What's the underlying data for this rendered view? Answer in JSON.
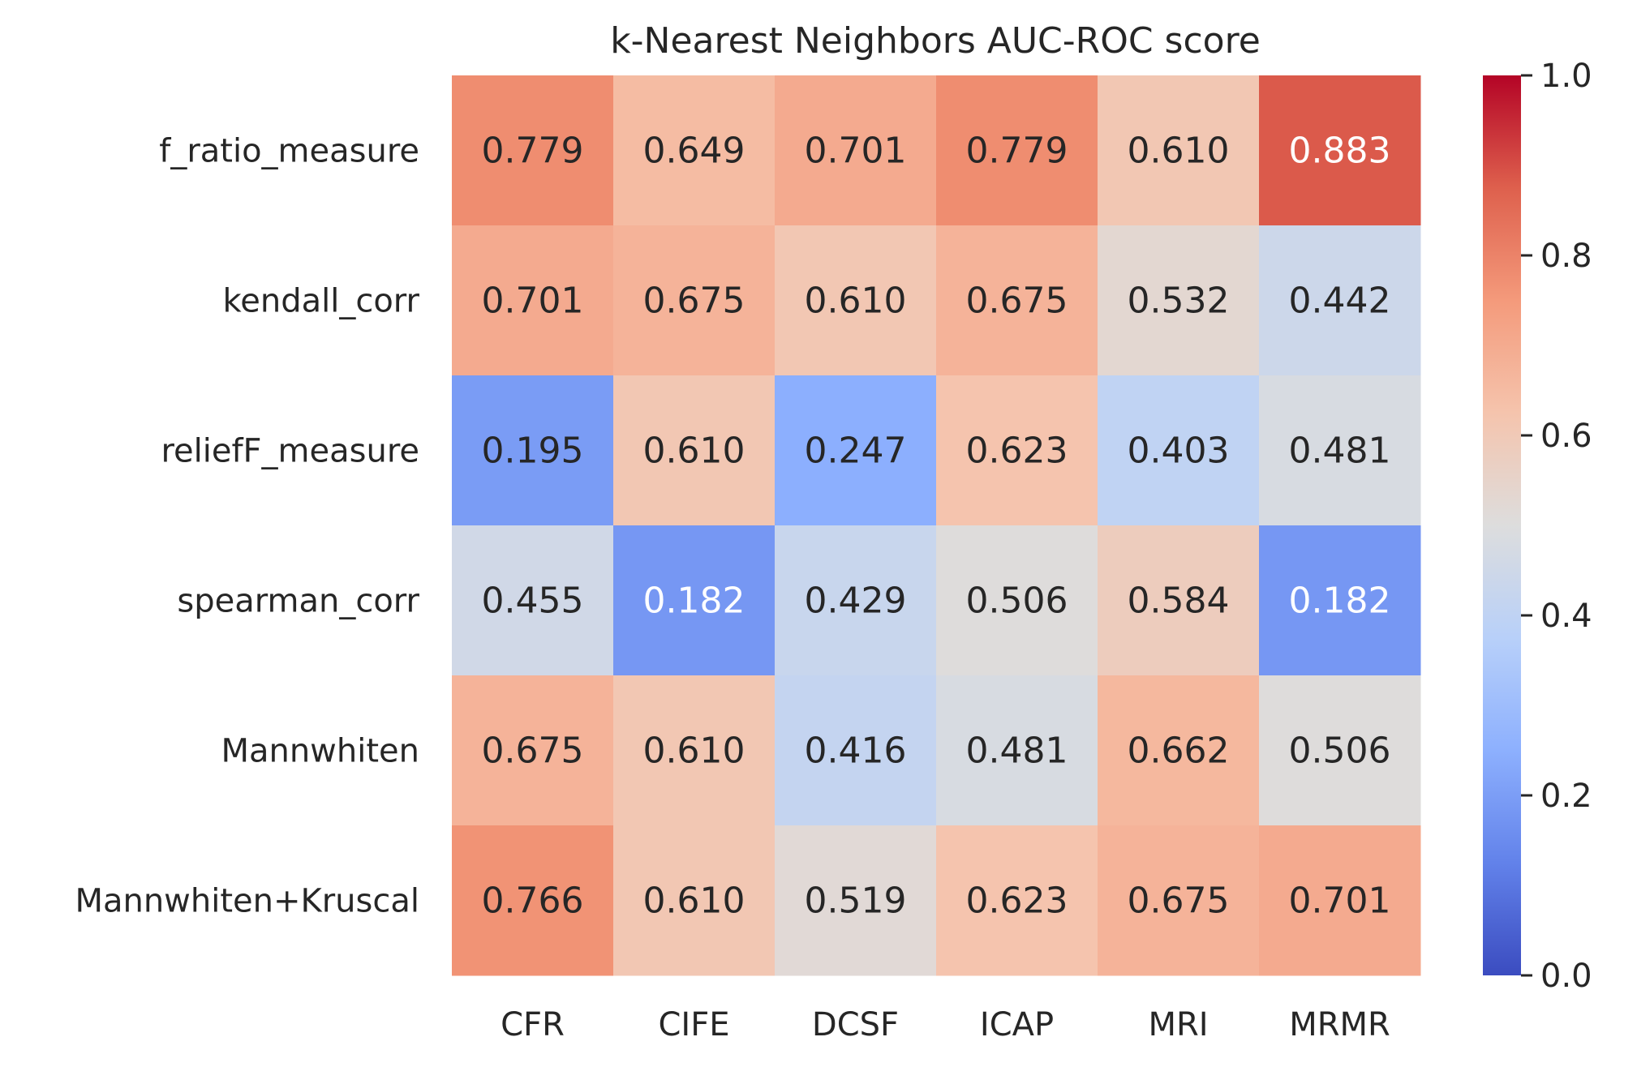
{
  "chart_data": {
    "type": "heatmap",
    "title": "k-Nearest Neighbors AUC-ROC score",
    "xlabel": "",
    "ylabel": "",
    "columns": [
      "CFR",
      "CIFE",
      "DCSF",
      "ICAP",
      "MRI",
      "MRMR"
    ],
    "rows": [
      "f_ratio_measure",
      "kendall_corr",
      "reliefF_measure",
      "spearman_corr",
      "Mannwhiten",
      "Mannwhiten+Kruscal"
    ],
    "values": [
      [
        0.779,
        0.649,
        0.701,
        0.779,
        0.61,
        0.883
      ],
      [
        0.701,
        0.675,
        0.61,
        0.675,
        0.532,
        0.442
      ],
      [
        0.195,
        0.61,
        0.247,
        0.623,
        0.403,
        0.481
      ],
      [
        0.455,
        0.182,
        0.429,
        0.506,
        0.584,
        0.182
      ],
      [
        0.675,
        0.61,
        0.416,
        0.481,
        0.662,
        0.506
      ],
      [
        0.766,
        0.61,
        0.519,
        0.623,
        0.675,
        0.701
      ]
    ],
    "value_format": "3 decimals",
    "colormap": "coolwarm",
    "vmin": 0.0,
    "vmax": 1.0,
    "colorbar_ticks": [
      "0.0",
      "0.2",
      "0.4",
      "0.6",
      "0.8",
      "1.0"
    ],
    "colorbar_tick_values": [
      0.0,
      0.2,
      0.4,
      0.6,
      0.8,
      1.0
    ],
    "text_colors": {
      "dark": "#262626",
      "light": "#ffffff"
    },
    "grid": false
  }
}
